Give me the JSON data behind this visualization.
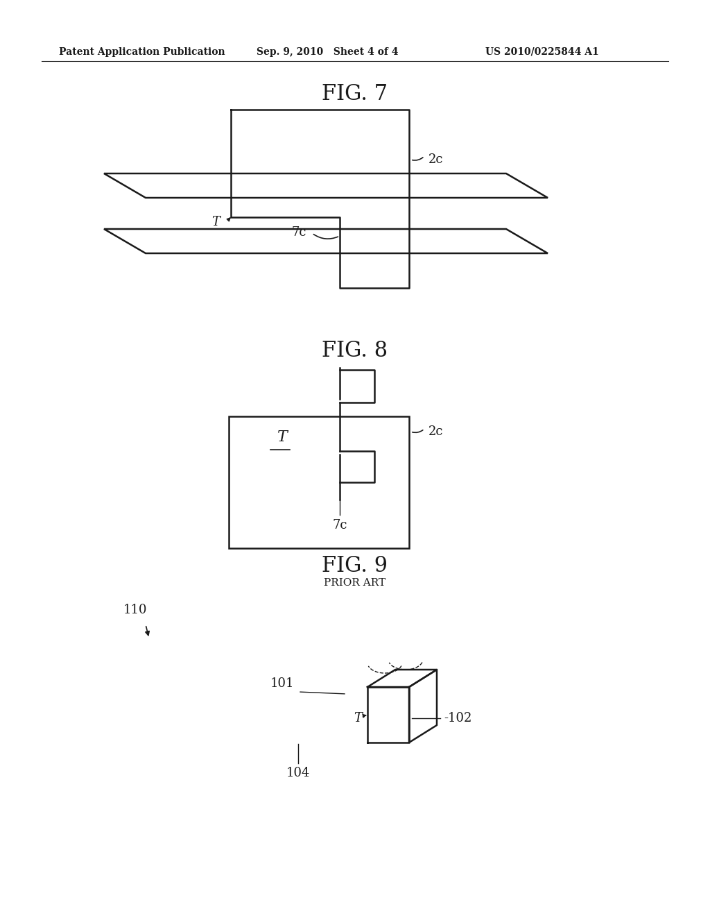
{
  "header_left": "Patent Application Publication",
  "header_mid": "Sep. 9, 2010   Sheet 4 of 4",
  "header_right": "US 2010/0225844 A1",
  "fig7_title": "FIG. 7",
  "fig8_title": "FIG. 8",
  "fig9_title": "FIG. 9",
  "fig9_subtitle": "PRIOR ART",
  "bg_color": "#ffffff",
  "line_color": "#1a1a1a",
  "line_width": 1.8
}
